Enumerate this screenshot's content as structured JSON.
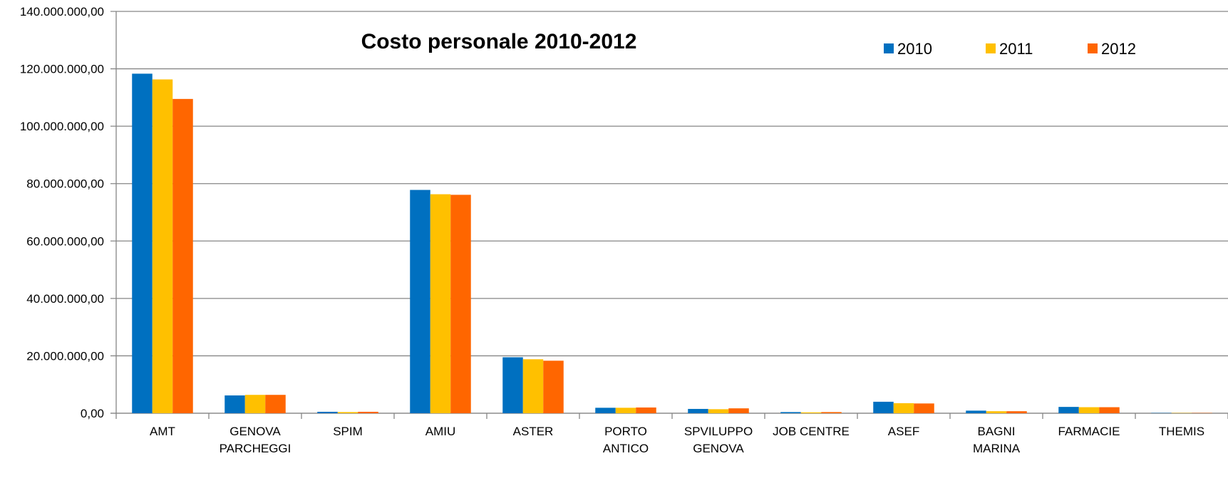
{
  "chart_data": {
    "type": "bar",
    "title": "Costo  personale 2010-2012",
    "xlabel": "",
    "ylabel": "",
    "ylim": [
      0,
      140000000
    ],
    "yticks": [
      0,
      20000000,
      40000000,
      60000000,
      80000000,
      100000000,
      120000000,
      140000000
    ],
    "ytick_labels": [
      "0,00",
      "20.000.000,00",
      "40.000.000,00",
      "60.000.000,00",
      "80.000.000,00",
      "100.000.000,00",
      "120.000.000,00",
      "140.000.000,00"
    ],
    "grid": true,
    "legend_position": "top-right",
    "categories": [
      [
        "AMT"
      ],
      [
        "GENOVA",
        "PARCHEGGI"
      ],
      [
        "SPIM"
      ],
      [
        "AMIU"
      ],
      [
        "ASTER"
      ],
      [
        "PORTO",
        "ANTICO"
      ],
      [
        "SPVILUPPO",
        "GENOVA"
      ],
      [
        "JOB CENTRE"
      ],
      [
        "ASEF"
      ],
      [
        "BAGNI",
        "MARINA"
      ],
      [
        "FARMACIE"
      ],
      [
        "THEMIS"
      ]
    ],
    "series": [
      {
        "name": "2010",
        "color": "#0070C0",
        "values": [
          118300000,
          6200000,
          500000,
          77800000,
          19500000,
          1900000,
          1500000,
          400000,
          4000000,
          900000,
          2200000,
          100000
        ]
      },
      {
        "name": "2011",
        "color": "#FFC000",
        "values": [
          116300000,
          6400000,
          400000,
          76300000,
          18800000,
          1900000,
          1400000,
          300000,
          3500000,
          700000,
          2100000,
          100000
        ]
      },
      {
        "name": "2012",
        "color": "#FF6600",
        "values": [
          109500000,
          6400000,
          500000,
          76100000,
          18300000,
          2000000,
          1700000,
          400000,
          3400000,
          700000,
          2100000,
          100000
        ]
      }
    ]
  }
}
